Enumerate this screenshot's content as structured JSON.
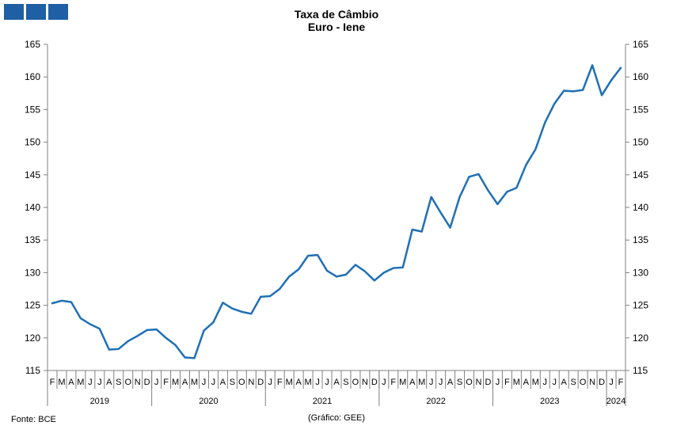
{
  "title_line1": "Taxa de Câmbio",
  "title_line2": "Euro - Iene",
  "source": "Fonte: BCE",
  "credit": "(Gráfico: GEE)",
  "colors": {
    "line": "#1f6fb5",
    "logo": "#1f5fa3",
    "axis": "#808080"
  },
  "chart_data": {
    "type": "line",
    "title": "Taxa de Câmbio Euro - Iene",
    "ylim": [
      115,
      165
    ],
    "yticks": [
      115,
      120,
      125,
      130,
      135,
      140,
      145,
      150,
      155,
      160,
      165
    ],
    "x_start": "2019-02",
    "month_labels": [
      "F",
      "M",
      "A",
      "M",
      "J",
      "J",
      "A",
      "S",
      "O",
      "N",
      "D",
      "J",
      "F",
      "M",
      "A",
      "M",
      "J",
      "J",
      "A",
      "S",
      "O",
      "N",
      "D",
      "J",
      "F",
      "M",
      "A",
      "M",
      "J",
      "J",
      "A",
      "S",
      "O",
      "N",
      "D",
      "J",
      "F",
      "M",
      "A",
      "M",
      "J",
      "J",
      "A",
      "S",
      "O",
      "N",
      "D",
      "J",
      "F",
      "M",
      "A",
      "M",
      "J",
      "J",
      "A",
      "S",
      "O",
      "N",
      "D",
      "J",
      "F"
    ],
    "years": [
      {
        "label": "2019",
        "first": 0,
        "last": 10
      },
      {
        "label": "2020",
        "first": 11,
        "last": 22
      },
      {
        "label": "2021",
        "first": 23,
        "last": 34
      },
      {
        "label": "2022",
        "first": 35,
        "last": 46
      },
      {
        "label": "2023",
        "first": 47,
        "last": 58
      },
      {
        "label": "2024",
        "first": 59,
        "last": 60
      }
    ],
    "series": [
      {
        "values": [
          125.3,
          125.7,
          125.5,
          123.0,
          122.1,
          121.4,
          118.2,
          118.3,
          119.5,
          120.3,
          121.2,
          121.3,
          120.0,
          118.9,
          117.0,
          116.9,
          121.1,
          122.4,
          125.4,
          124.5,
          124.0,
          123.7,
          126.3,
          126.4,
          127.5,
          129.4,
          130.5,
          132.6,
          132.7,
          130.3,
          129.4,
          129.7,
          131.2,
          130.2,
          128.8,
          130.0,
          130.7,
          130.8,
          136.6,
          136.3,
          141.6,
          139.2,
          136.9,
          141.6,
          144.7,
          145.1,
          142.6,
          140.5,
          142.4,
          143.0,
          146.5,
          148.9,
          153.0,
          155.9,
          157.9,
          157.8,
          158.0,
          161.8,
          157.2,
          159.5,
          161.4
        ]
      }
    ]
  }
}
